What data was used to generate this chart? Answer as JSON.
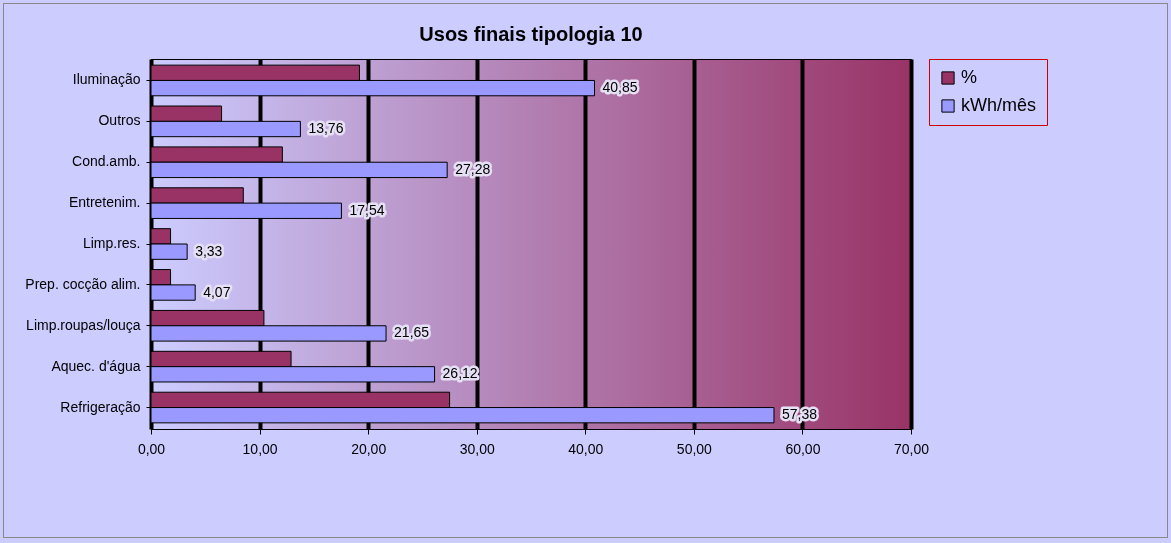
{
  "chart_data": {
    "type": "bar",
    "orientation": "horizontal",
    "title": "Usos finais tipologia 10",
    "categories": [
      "Iluminação",
      "Outros",
      "Cond.amb.",
      "Entretenim.",
      "Limp.res.",
      "Prep. cocção alim.",
      "Limp.roupas/louça",
      "Aquec. d'água",
      "Refrigeração"
    ],
    "series": [
      {
        "name": "%",
        "color": "#993366",
        "values": [
          19.2,
          6.5,
          12.1,
          8.5,
          1.8,
          1.8,
          10.4,
          12.9,
          27.5
        ]
      },
      {
        "name": "kWh/mês",
        "color": "#9999ff",
        "values": [
          40.85,
          13.76,
          27.28,
          17.54,
          3.33,
          4.07,
          21.65,
          26.12,
          57.38
        ],
        "value_labels": [
          "40,85",
          "13,76",
          "27,28",
          "17,54",
          "3,33",
          "4,07",
          "21,65",
          "26,12",
          "57,38"
        ]
      }
    ],
    "xlim": [
      0,
      70
    ],
    "xticks": [
      {
        "value": 0,
        "label": "0,00"
      },
      {
        "value": 10,
        "label": "10,00"
      },
      {
        "value": 20,
        "label": "20,00"
      },
      {
        "value": 30,
        "label": "30,00"
      },
      {
        "value": 40,
        "label": "40,00"
      },
      {
        "value": 50,
        "label": "50,00"
      },
      {
        "value": 60,
        "label": "60,00"
      },
      {
        "value": 70,
        "label": "70,00"
      }
    ],
    "grid": "x",
    "legend": "right"
  }
}
